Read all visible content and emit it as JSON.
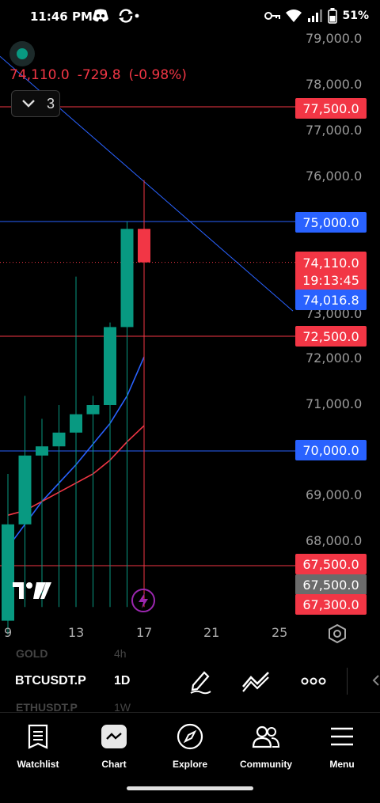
{
  "status_bar": {
    "time": "11:46 PM",
    "battery": "51%"
  },
  "chart": {
    "last_price": "74,110.0",
    "change": "-729.8",
    "change_pct": "(-0.98%)",
    "collapse_count": "3",
    "axis_labels": [
      "79,000.0",
      "78,000.0",
      "77,000.0",
      "76,000.0",
      "73,000.0",
      "72,000.0",
      "71,000.0",
      "69,000.0",
      "68,000.0"
    ],
    "tags": {
      "t77500": "77,500.0",
      "t75000": "75,000.0",
      "t74110": "74,110.0",
      "countdown": "19:13:45",
      "t74016": "74,016.8",
      "t72500": "72,500.0",
      "t70000": "70,000.0",
      "t67500a": "67,500.0",
      "t67500b": "67,500.0",
      "t67300": "67,300.0"
    },
    "x_labels": [
      "9",
      "13",
      "17",
      "21",
      "25"
    ],
    "colors": {
      "up": "#089981",
      "down": "#f23645",
      "blue_line": "#2962ff"
    }
  },
  "chart_data": {
    "type": "candlestick",
    "x": [
      "9",
      "10",
      "11",
      "12",
      "13",
      "14",
      "15",
      "16",
      "17"
    ],
    "open": [
      66300,
      68400,
      69900,
      70100,
      70400,
      70800,
      71000,
      72700,
      74840
    ],
    "high": [
      69500,
      71200,
      70700,
      71000,
      73800,
      71200,
      72800,
      75000,
      75900
    ],
    "low": [
      66000,
      68200,
      68900,
      69000,
      70200,
      70400,
      70600,
      72200,
      73900
    ],
    "close": [
      68400,
      69900,
      70100,
      70400,
      70800,
      71000,
      72700,
      74840,
      74110
    ],
    "ylim": [
      66600,
      79000
    ],
    "horizontal_levels": [
      77500,
      75000,
      72500,
      70000,
      67500
    ]
  },
  "toolbar": {
    "ghost_symbol_top": "GOLD",
    "ghost_tf_top": "4h",
    "symbol": "BTCUSDT.P",
    "timeframe": "1D",
    "ghost_symbol_bottom": "ETHUSDT.P",
    "ghost_tf_bottom": "1W"
  },
  "tabs": [
    {
      "label": "Watchlist",
      "icon": "watchlist-icon"
    },
    {
      "label": "Chart",
      "icon": "chart-icon"
    },
    {
      "label": "Explore",
      "icon": "compass-icon"
    },
    {
      "label": "Community",
      "icon": "people-icon"
    },
    {
      "label": "Menu",
      "icon": "menu-icon"
    }
  ]
}
